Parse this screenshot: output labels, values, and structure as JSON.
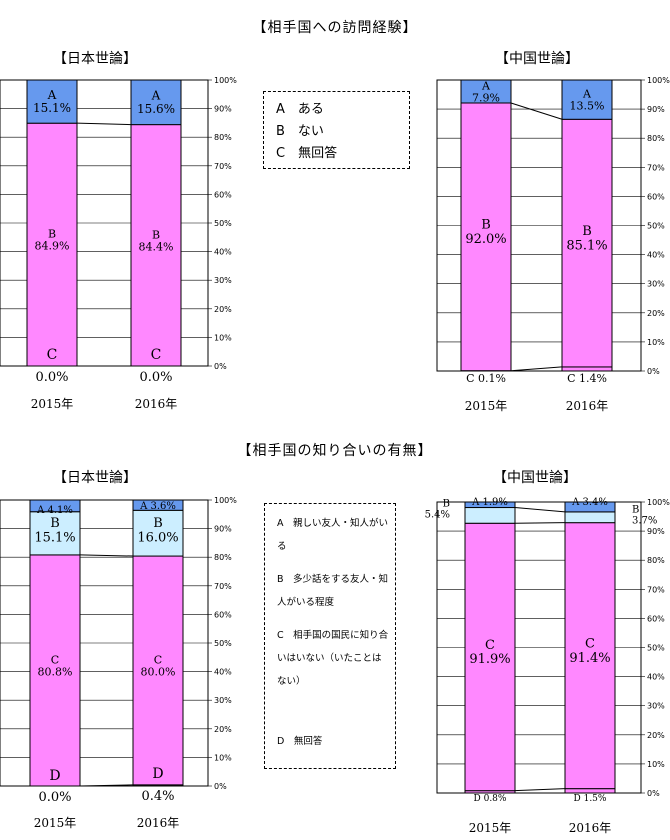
{
  "section1": {
    "title": "【相手国への訪問経験】",
    "legend": [
      "A　ある",
      "B　ない",
      "C　無回答"
    ]
  },
  "section2": {
    "title": "【相手国の知り合いの有無】",
    "legend": [
      "A　親しい友人・知人がいる",
      "B　多少話をする友人・知人がいる程度",
      "C　相手国の国民に知り合いはいない（いたことはない）",
      "D　無回答"
    ]
  },
  "colors": {
    "A": "#6699ee",
    "B_visit": "#ff88ff",
    "B_acq": "#cceeff",
    "C_acq": "#ff88ff",
    "D": "#ffffff"
  },
  "chart_data": [
    {
      "type": "bar",
      "stacked": true,
      "title": "【日本世論】",
      "categories": [
        "2015年",
        "2016年"
      ],
      "series": [
        {
          "name": "A",
          "values": [
            15.1,
            15.6
          ]
        },
        {
          "name": "B",
          "values": [
            84.9,
            84.4
          ]
        },
        {
          "name": "C",
          "values": [
            0.0,
            0.0
          ]
        }
      ],
      "labels": {
        "A": [
          "A\n15.1%",
          "A\n15.6%"
        ],
        "B": [
          "B\n84.9%",
          "B\n84.4%"
        ],
        "C": [
          "C",
          "C"
        ],
        "below": [
          "0.0%",
          "0.0%"
        ]
      },
      "ylim": [
        0,
        100
      ],
      "yticks": [
        "0%",
        "10%",
        "20%",
        "30%",
        "40%",
        "50%",
        "60%",
        "70%",
        "80%",
        "90%",
        "100%"
      ]
    },
    {
      "type": "bar",
      "stacked": true,
      "title": "【中国世論】",
      "categories": [
        "2015年",
        "2016年"
      ],
      "series": [
        {
          "name": "A",
          "values": [
            7.9,
            13.5
          ]
        },
        {
          "name": "B",
          "values": [
            92.0,
            85.1
          ]
        },
        {
          "name": "C",
          "values": [
            0.1,
            1.4
          ]
        }
      ],
      "labels": {
        "A": [
          "A\n7.9%",
          "A\n13.5%"
        ],
        "B": [
          "B\n92.0%",
          "B\n85.1%"
        ],
        "below": [
          "C 0.1%",
          "C 1.4%"
        ]
      },
      "ylim": [
        0,
        100
      ],
      "yticks": [
        "0%",
        "10%",
        "20%",
        "30%",
        "40%",
        "50%",
        "60%",
        "70%",
        "80%",
        "90%",
        "100%"
      ]
    },
    {
      "type": "bar",
      "stacked": true,
      "title": "【日本世論】",
      "categories": [
        "2015年",
        "2016年"
      ],
      "series": [
        {
          "name": "A",
          "values": [
            4.1,
            3.6
          ]
        },
        {
          "name": "B",
          "values": [
            15.1,
            16.0
          ]
        },
        {
          "name": "C",
          "values": [
            80.8,
            80.0
          ]
        },
        {
          "name": "D",
          "values": [
            0.0,
            0.4
          ]
        }
      ],
      "labels": {
        "A": [
          "A 4.1%",
          "A 3.6%"
        ],
        "B": [
          "B\n15.1%",
          "B\n16.0%"
        ],
        "C": [
          "C\n80.8%",
          "C\n80.0%"
        ],
        "D": [
          "D",
          "D"
        ],
        "below": [
          "0.0%",
          "0.4%"
        ]
      },
      "ylim": [
        0,
        100
      ],
      "yticks": [
        "0%",
        "10%",
        "20%",
        "30%",
        "40%",
        "50%",
        "60%",
        "70%",
        "80%",
        "90%",
        "100%"
      ]
    },
    {
      "type": "bar",
      "stacked": true,
      "title": "【中国世論】",
      "categories": [
        "2015年",
        "2016年"
      ],
      "series": [
        {
          "name": "A",
          "values": [
            1.9,
            3.4
          ]
        },
        {
          "name": "B",
          "values": [
            5.4,
            3.7
          ]
        },
        {
          "name": "C",
          "values": [
            91.9,
            91.4
          ]
        },
        {
          "name": "D",
          "values": [
            0.8,
            1.5
          ]
        }
      ],
      "labels": {
        "A": [
          "A 1.9%",
          "A 3.4%"
        ],
        "B": [
          "B\n5.4%",
          "B\n3.7%"
        ],
        "C": [
          "C\n91.9%",
          "C\n91.4%"
        ],
        "below": [
          "D 0.8%",
          "D 1.5%"
        ]
      },
      "ylim": [
        0,
        100
      ],
      "yticks": [
        "0%",
        "10%",
        "20%",
        "30%",
        "40%",
        "50%",
        "60%",
        "70%",
        "80%",
        "90%",
        "100%"
      ]
    }
  ]
}
